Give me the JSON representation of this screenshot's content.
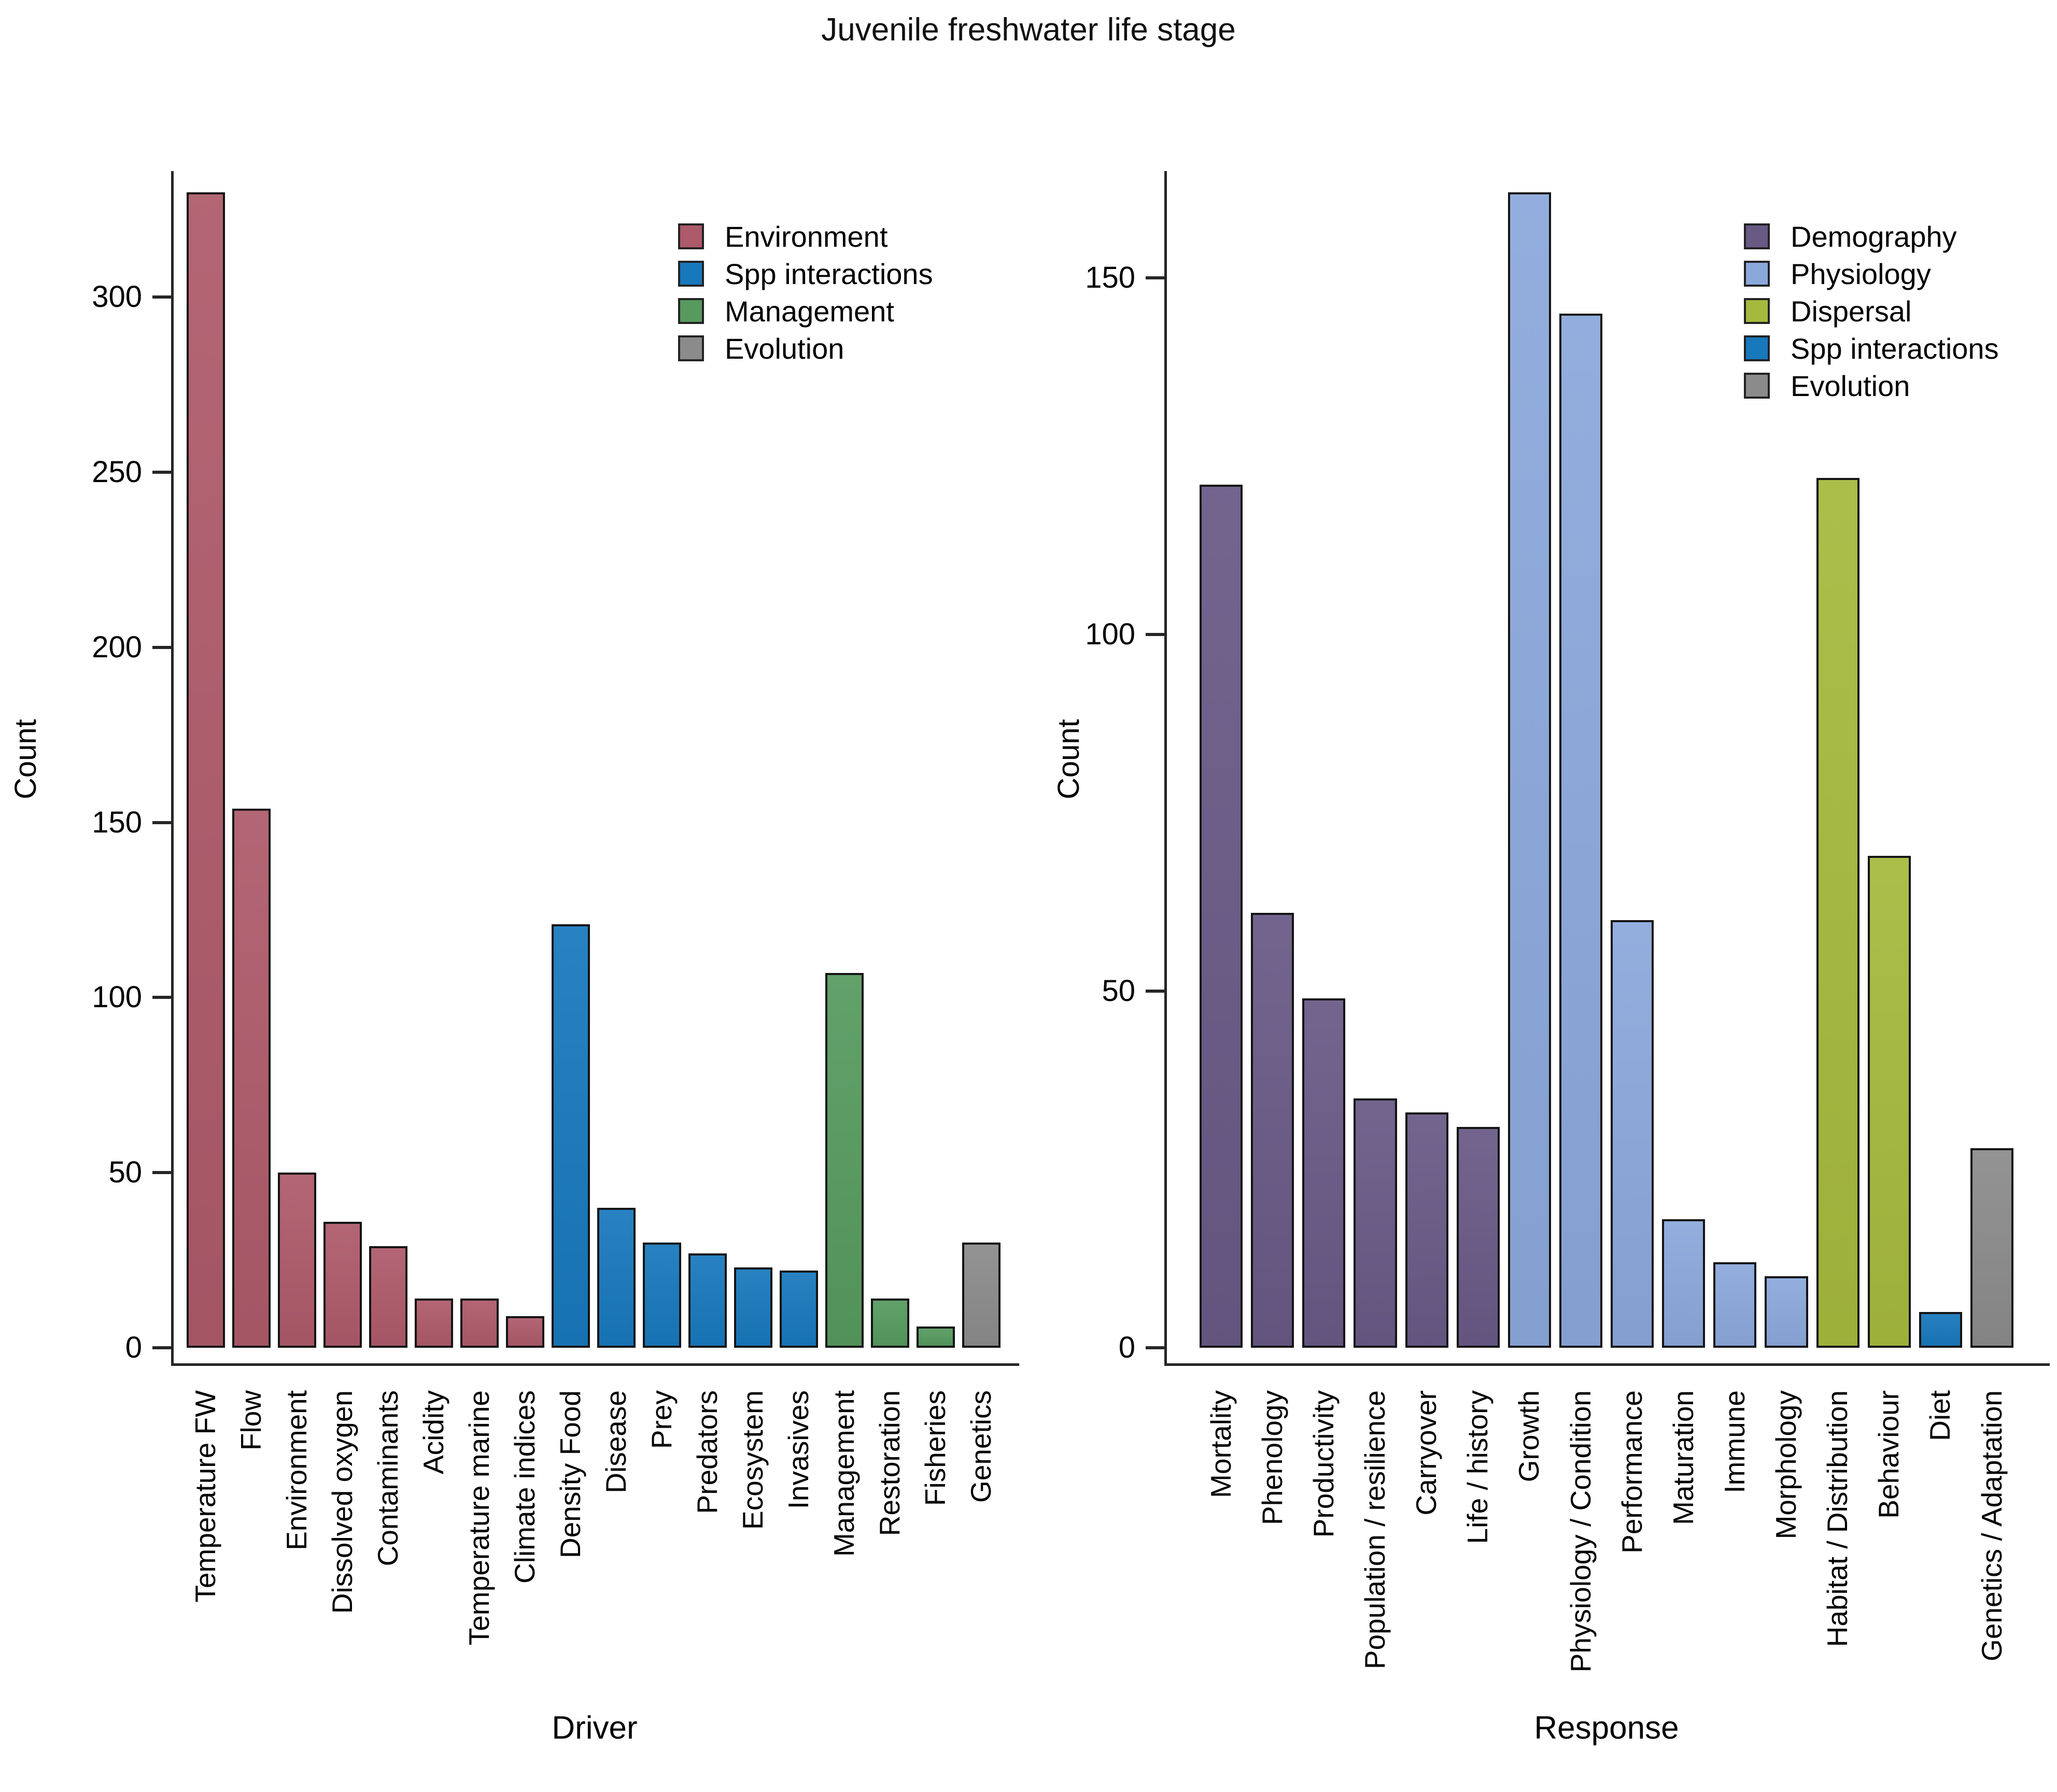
{
  "title": "Juvenile freshwater life stage",
  "chart_data": [
    {
      "type": "bar",
      "panel": "driver",
      "title": "",
      "xlabel": "Driver",
      "ylabel": "Count",
      "ylim": [
        0,
        336
      ],
      "yticks": [
        0,
        50,
        100,
        150,
        200,
        250,
        300
      ],
      "grid": false,
      "legend_position": "upper-right-inside",
      "categories": [
        "Temperature FW",
        "Flow",
        "Environment",
        "Dissolved oxygen",
        "Contaminants",
        "Acidity",
        "Temperature marine",
        "Climate indices",
        "Density Food",
        "Disease",
        "Prey",
        "Predators",
        "Ecosystem",
        "Invasives",
        "Management",
        "Restoration",
        "Fisheries",
        "Genetics"
      ],
      "values": [
        330,
        154,
        50,
        36,
        29,
        14,
        14,
        9,
        121,
        40,
        30,
        27,
        23,
        22,
        107,
        14,
        6,
        30
      ],
      "groups": [
        "Environment",
        "Environment",
        "Environment",
        "Environment",
        "Environment",
        "Environment",
        "Environment",
        "Environment",
        "Spp interactions",
        "Spp interactions",
        "Spp interactions",
        "Spp interactions",
        "Spp interactions",
        "Spp interactions",
        "Management",
        "Management",
        "Management",
        "Evolution"
      ],
      "legend": [
        {
          "label": "Environment",
          "color": "#ad5a6a"
        },
        {
          "label": "Spp interactions",
          "color": "#1878bc"
        },
        {
          "label": "Management",
          "color": "#569a5f"
        },
        {
          "label": "Evolution",
          "color": "#8b8b8b"
        }
      ]
    },
    {
      "type": "bar",
      "panel": "response",
      "title": "",
      "xlabel": "Response",
      "ylabel": "Count",
      "ylim": [
        0,
        165
      ],
      "yticks": [
        0,
        50,
        100,
        150
      ],
      "grid": false,
      "legend_position": "upper-right-inside",
      "categories": [
        "Mortality",
        "Phenology",
        "Productivity",
        "Population / resilience",
        "Carryover",
        "Life / history",
        "Growth",
        "Physiology / Condition",
        "Performance",
        "Maturation",
        "Immune",
        "Morphology",
        "Habitat / Distribution",
        "Behaviour",
        "Diet",
        "Genetics / Adaptation"
      ],
      "values": [
        121,
        61,
        49,
        35,
        33,
        31,
        162,
        145,
        60,
        18,
        12,
        10,
        122,
        69,
        5,
        28
      ],
      "groups": [
        "Demography",
        "Demography",
        "Demography",
        "Demography",
        "Demography",
        "Demography",
        "Physiology",
        "Physiology",
        "Physiology",
        "Physiology",
        "Physiology",
        "Physiology",
        "Dispersal",
        "Dispersal",
        "Spp interactions",
        "Evolution"
      ],
      "legend": [
        {
          "label": "Demography",
          "color": "#685985"
        },
        {
          "label": "Physiology",
          "color": "#8ba8db"
        },
        {
          "label": "Dispersal",
          "color": "#a5b93d"
        },
        {
          "label": "Spp interactions",
          "color": "#1878bc"
        },
        {
          "label": "Evolution",
          "color": "#8b8b8b"
        }
      ]
    }
  ]
}
